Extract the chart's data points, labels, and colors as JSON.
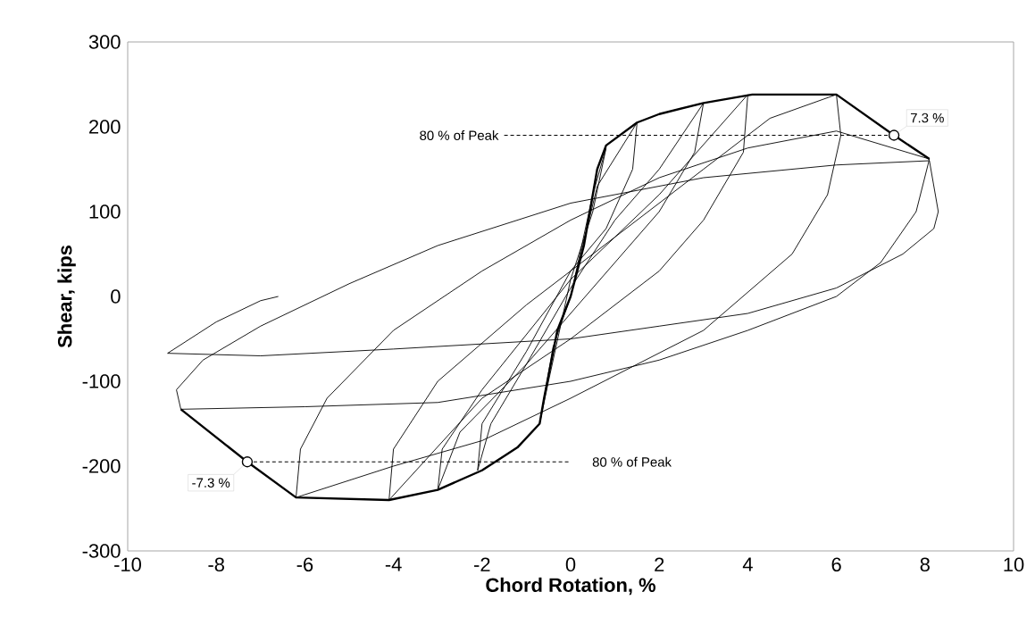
{
  "chart_data": {
    "type": "line",
    "xlabel": "Chord Rotation, %",
    "ylabel": "Shear, kips",
    "xlim": [
      -10,
      10
    ],
    "ylim": [
      -300,
      300
    ],
    "xticks": [
      -10,
      -8,
      -6,
      -4,
      -2,
      0,
      2,
      4,
      6,
      8,
      10
    ],
    "yticks": [
      -300,
      -200,
      -100,
      0,
      100,
      200,
      300
    ],
    "grid": false,
    "marker": "none",
    "line_style": "solid",
    "series": [
      {
        "color": "#000000",
        "x": [
          0,
          0.5,
          0.8,
          0.5,
          0,
          -0.5,
          -0.7,
          -0.4,
          0,
          0.6,
          1.5,
          1.4,
          0.8,
          0,
          -1,
          -2,
          -2.1,
          -1.8,
          -1,
          0,
          1,
          2,
          3,
          2.8,
          2,
          1,
          0,
          -1,
          -2.5,
          -3,
          -2.9,
          -2,
          0,
          2,
          4,
          3.9,
          3,
          2,
          0,
          -2,
          -4.1,
          -4,
          -3,
          -1,
          1,
          3,
          4.5,
          6,
          6.1,
          5.8,
          5,
          3,
          0,
          -2,
          -4,
          -6.2,
          -6.1,
          -5.5,
          -4,
          -2,
          0,
          2,
          4,
          6,
          8.1,
          7.8,
          7,
          6,
          4,
          2,
          0,
          -3,
          -6,
          -8.8,
          -8.9,
          -8.3,
          -7,
          -5,
          -3,
          0,
          3,
          6,
          8.1,
          8.3,
          8.2,
          7.5,
          6,
          4,
          2,
          0,
          -4,
          -7,
          -9.1,
          -8,
          -7,
          -6.6
        ],
        "values": [
          0,
          120,
          175,
          100,
          20,
          -100,
          -150,
          -60,
          0,
          130,
          205,
          150,
          80,
          30,
          -65,
          -150,
          -205,
          -150,
          -80,
          10,
          90,
          150,
          228,
          170,
          100,
          40,
          -20,
          -80,
          -160,
          -228,
          -180,
          -110,
          20,
          120,
          238,
          170,
          90,
          30,
          -50,
          -120,
          -240,
          -180,
          -100,
          -10,
          70,
          150,
          210,
          238,
          190,
          120,
          50,
          -40,
          -120,
          -170,
          -200,
          -237,
          -180,
          -120,
          -40,
          30,
          90,
          140,
          175,
          195,
          162,
          100,
          40,
          0,
          -40,
          -75,
          -100,
          -125,
          -130,
          -133,
          -110,
          -75,
          -35,
          15,
          60,
          110,
          140,
          155,
          160,
          100,
          80,
          50,
          10,
          -20,
          -35,
          -50,
          -62,
          -70,
          -67,
          -30,
          -5,
          0
        ]
      },
      {
        "color": "#000000",
        "x": [
          -8.8,
          -7.3,
          -6.2,
          -4.1,
          -3,
          -2,
          -1.2,
          -0.7,
          -0.6,
          -0.3,
          0,
          0.3,
          0.6,
          0.8,
          1.5,
          2,
          3,
          4.1,
          6,
          7.3,
          8.1
        ],
        "values": [
          -133,
          -195,
          -237,
          -240,
          -228,
          -205,
          -178,
          -150,
          -120,
          -40,
          0,
          60,
          150,
          178,
          205,
          215,
          228,
          238,
          238,
          190,
          162
        ]
      },
      {
        "color": "#000000",
        "line_style": "dashed",
        "x": [
          -1.5,
          7.3
        ],
        "values": [
          190,
          190
        ]
      },
      {
        "color": "#000000",
        "line_style": "dashed",
        "x": [
          -7.3,
          0
        ],
        "values": [
          -195,
          -195
        ]
      },
      {
        "type": "scatter",
        "color": "#000000",
        "marker": "circle",
        "x": [
          7.3,
          -7.3
        ],
        "values": [
          190,
          -195
        ]
      }
    ],
    "annotations": [
      {
        "text": "80 % of  Peak",
        "x": -1.5,
        "y": 190
      },
      {
        "text": "80 % of  Peak",
        "x": 0,
        "y": -195
      },
      {
        "text": "7.3 %",
        "x": 7.3,
        "y": 190
      },
      {
        "text": "-7.3 %",
        "x": -7.3,
        "y": -195
      }
    ]
  }
}
